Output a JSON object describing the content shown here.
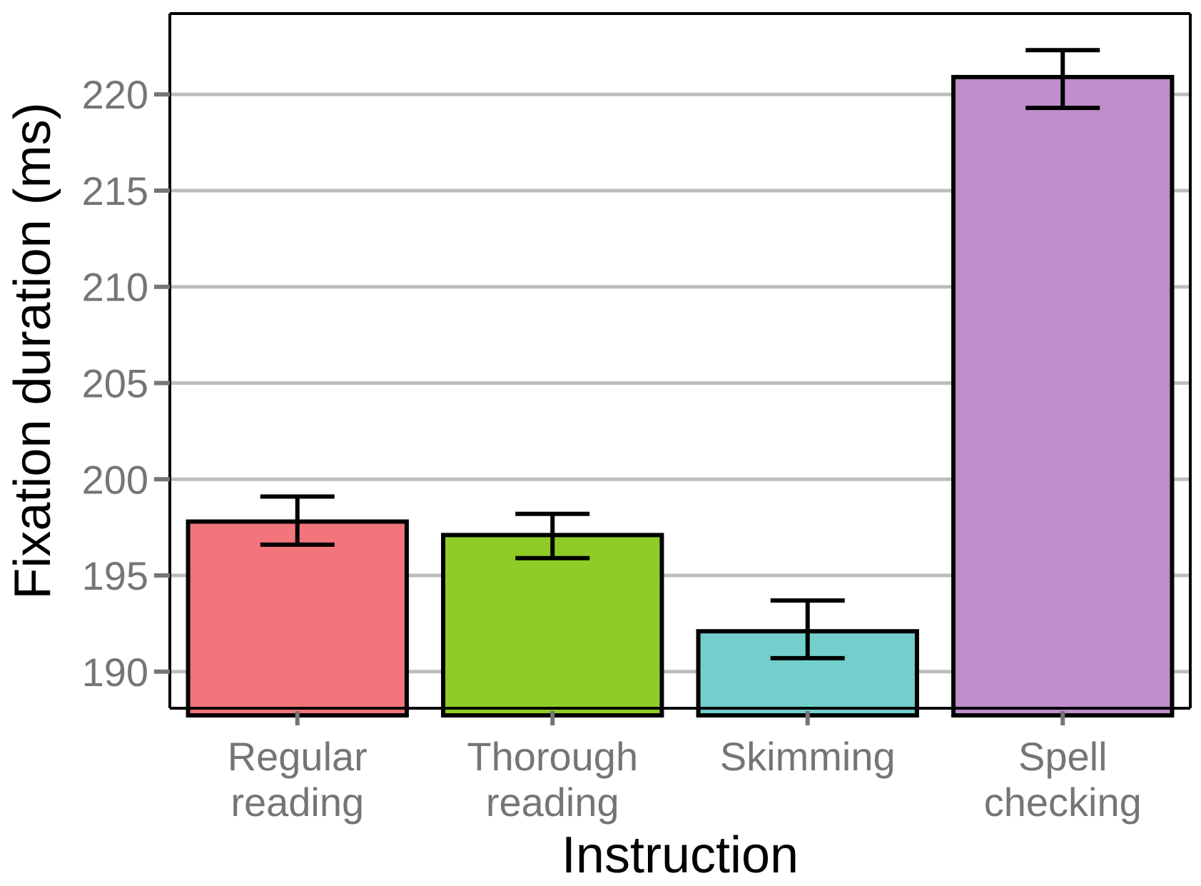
{
  "chart_data": {
    "type": "bar",
    "title": "",
    "xlabel": "Instruction",
    "ylabel": "Fixation duration (ms)",
    "categories": [
      [
        "Regular",
        "reading"
      ],
      [
        "Thorough",
        "reading"
      ],
      [
        "Skimming"
      ],
      [
        "Spell",
        "checking"
      ]
    ],
    "values": [
      197.8,
      197.1,
      192.1,
      220.9
    ],
    "error_lower": [
      196.6,
      195.9,
      190.7,
      219.3
    ],
    "error_upper": [
      199.1,
      198.2,
      193.7,
      222.3
    ],
    "colors": [
      "#F2757B",
      "#8FCC27",
      "#72CFCB",
      "#BF8ECB"
    ],
    "yticks": [
      190,
      195,
      200,
      205,
      210,
      215,
      220
    ],
    "ylim": [
      188.1,
      224.2
    ],
    "grid": "horizontal",
    "legend": "none"
  }
}
